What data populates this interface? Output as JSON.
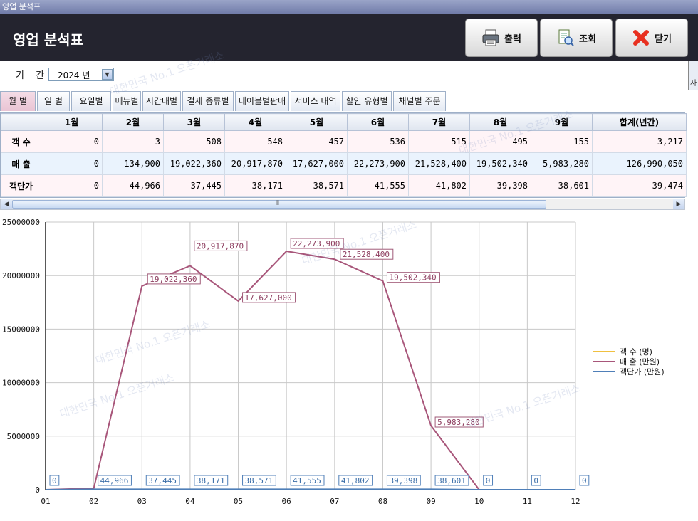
{
  "window": {
    "title": "영업 분석표"
  },
  "header": {
    "title": "영업 분석표",
    "buttons": [
      {
        "label": "출력",
        "icon": "printer-icon"
      },
      {
        "label": "조회",
        "icon": "search-document-icon"
      },
      {
        "label": "닫기",
        "icon": "close-x-icon"
      }
    ]
  },
  "edge": {
    "char": "사"
  },
  "period": {
    "label": "기 간",
    "selected": "2024 년"
  },
  "tabs": [
    "월 별",
    "일 별",
    "요일별",
    "메뉴별",
    "시간대별",
    "결제 종류별",
    "테이블별판매",
    "서비스 내역",
    "할인 유형별",
    "채널별 주문"
  ],
  "active_tab": "월 별",
  "table": {
    "columns": [
      "",
      "1월",
      "2월",
      "3월",
      "4월",
      "5월",
      "6월",
      "7월",
      "8월",
      "9월",
      "합계(년간)"
    ],
    "rows": [
      {
        "label": "객 수",
        "values": [
          "0",
          "3",
          "508",
          "548",
          "457",
          "536",
          "515",
          "495",
          "155",
          "3,217"
        ]
      },
      {
        "label": "매 출",
        "values": [
          "0",
          "134,900",
          "19,022,360",
          "20,917,870",
          "17,627,000",
          "22,273,900",
          "21,528,400",
          "19,502,340",
          "5,983,280",
          "126,990,050"
        ]
      },
      {
        "label": "객단가",
        "values": [
          "0",
          "44,966",
          "37,445",
          "38,171",
          "38,571",
          "41,555",
          "41,802",
          "39,398",
          "38,601",
          "39,474"
        ]
      }
    ]
  },
  "watermark": "대한민국 No.1 오픈거래소",
  "chart_data": {
    "type": "line",
    "x": [
      "01",
      "02",
      "03",
      "04",
      "05",
      "06",
      "07",
      "08",
      "09",
      "10",
      "11",
      "12"
    ],
    "ylim": [
      0,
      25000000
    ],
    "yticks": [
      "0",
      "5000000",
      "10000000",
      "15000000",
      "20000000",
      "25000000"
    ],
    "grid": true,
    "legend_position": "right",
    "series": [
      {
        "name": "객  수 (명)",
        "color": "#f0c040",
        "values": [
          0,
          3,
          508,
          548,
          457,
          536,
          515,
          495,
          155,
          0,
          0,
          0
        ],
        "labels": []
      },
      {
        "name": "매  출 (만원)",
        "color": "#a8567a",
        "values": [
          0,
          134900,
          19022360,
          20917870,
          17627000,
          22273900,
          21528400,
          19502340,
          5983280,
          0,
          0,
          0
        ],
        "labels": [
          "",
          "",
          "19,022,360",
          "20,917,870",
          "17,627,000",
          "22,273,900",
          "21,528,400",
          "19,502,340",
          "5,983,280",
          "",
          "",
          ""
        ]
      },
      {
        "name": "객단가 (만원)",
        "color": "#4f7fb8",
        "values": [
          0,
          44966,
          37445,
          38171,
          38571,
          41555,
          41802,
          39398,
          38601,
          0,
          0,
          0
        ],
        "labels": [
          "0",
          "44,966",
          "37,445",
          "38,171",
          "38,571",
          "41,555",
          "41,802",
          "39,398",
          "38,601",
          "0",
          "0",
          "0"
        ]
      }
    ]
  }
}
